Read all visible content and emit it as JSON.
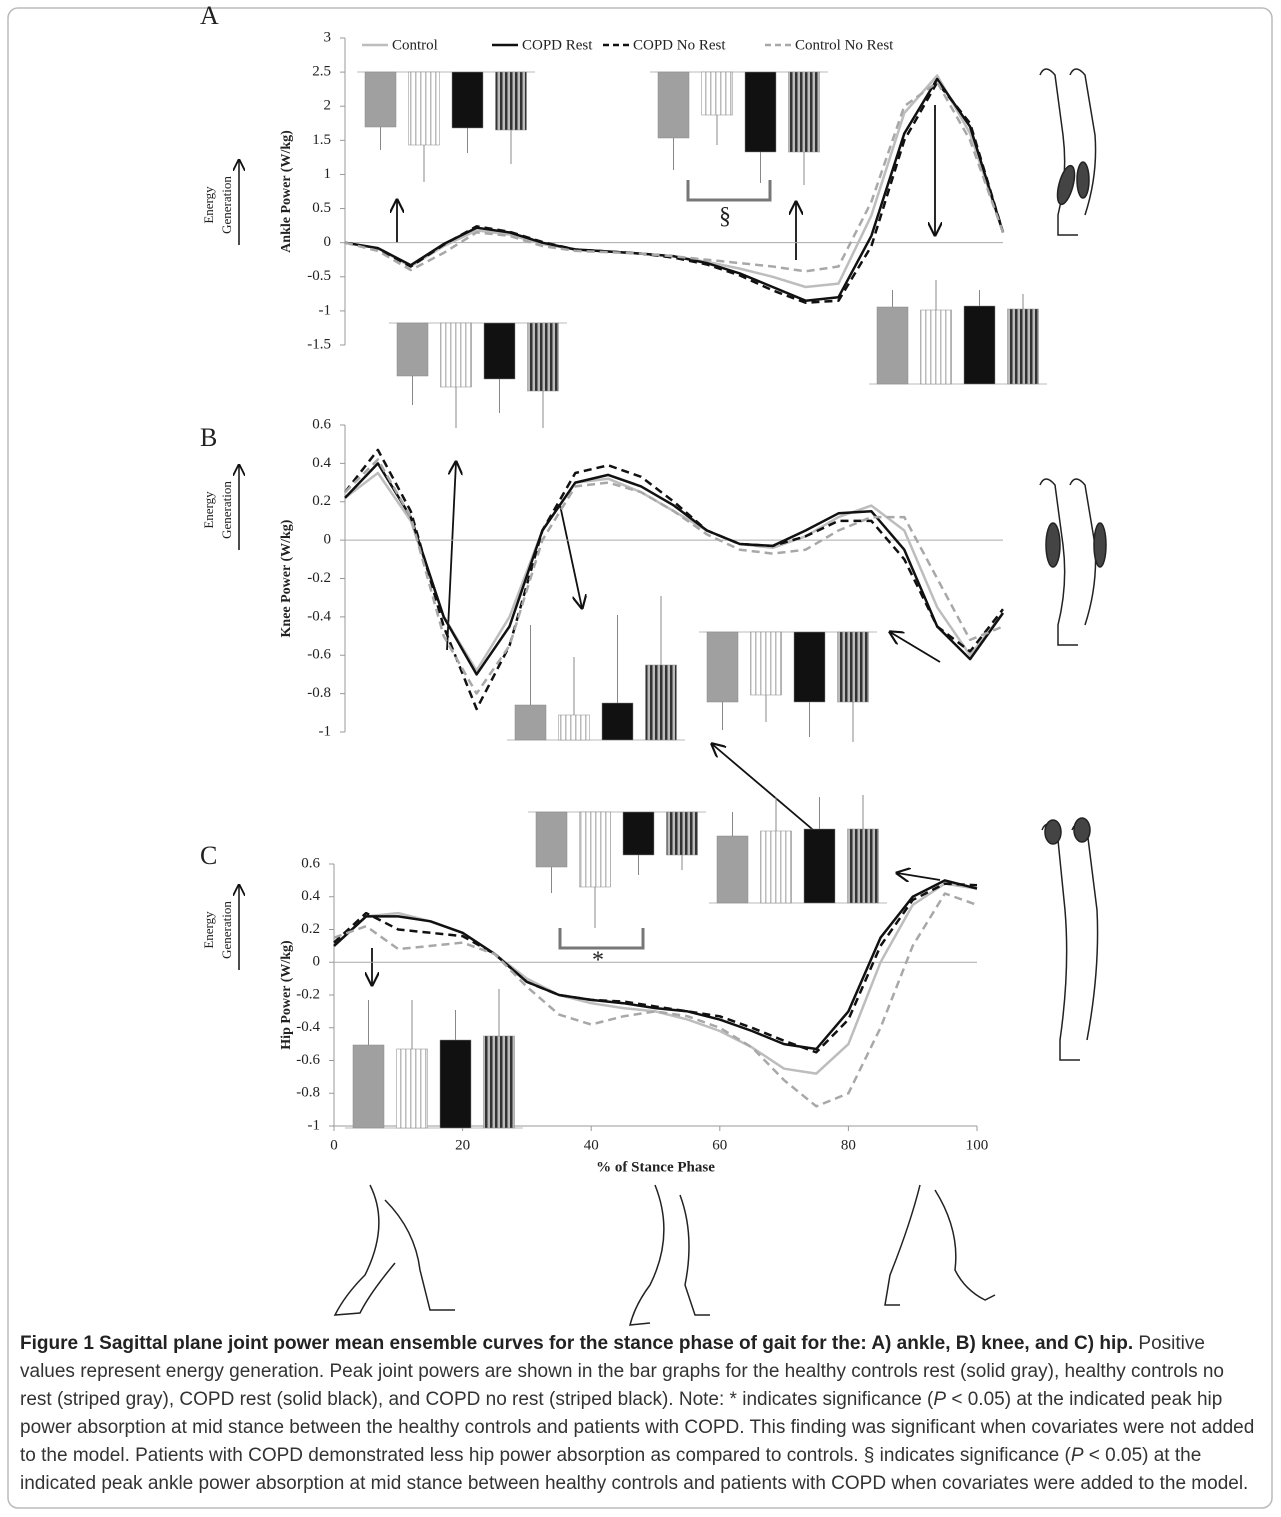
{
  "legend": [
    {
      "name": "Control",
      "color": "#bdbdbd",
      "dashed": false
    },
    {
      "name": "COPD Rest",
      "color": "#111111",
      "dashed": false
    },
    {
      "name": "COPD No Rest",
      "color": "#111111",
      "dashed": true
    },
    {
      "name": "Control No Rest",
      "color": "#a8a8a8",
      "dashed": true
    }
  ],
  "x": [
    0,
    5,
    10,
    15,
    20,
    25,
    30,
    35,
    40,
    45,
    50,
    55,
    60,
    65,
    70,
    75,
    80,
    85,
    90,
    95,
    100
  ],
  "xlim": [
    0,
    100
  ],
  "xticks": [
    0,
    20,
    40,
    60,
    80,
    100
  ],
  "xlabel": "% of Stance Phase",
  "energy_label": [
    "Energy",
    "Generation"
  ],
  "panels": [
    {
      "label": "A",
      "ylabel": "Ankle Power (W/kg)",
      "ylim": [
        -1.5,
        3
      ],
      "yticks": [
        3,
        2.5,
        2,
        1.5,
        1,
        0.5,
        0,
        -0.5,
        -1,
        -1.5
      ],
      "series": [
        {
          "values": [
            0,
            -0.08,
            -0.35,
            -0.05,
            0.18,
            0.12,
            -0.02,
            -0.1,
            -0.13,
            -0.16,
            -0.2,
            -0.28,
            -0.38,
            -0.5,
            -0.65,
            -0.6,
            0.4,
            1.9,
            2.45,
            1.6,
            0.15
          ]
        },
        {
          "values": [
            0,
            -0.08,
            -0.33,
            -0.02,
            0.22,
            0.15,
            0,
            -0.1,
            -0.13,
            -0.16,
            -0.2,
            -0.3,
            -0.45,
            -0.65,
            -0.85,
            -0.8,
            0.1,
            1.6,
            2.4,
            1.7,
            0.15
          ]
        },
        {
          "values": [
            0,
            -0.09,
            -0.35,
            -0.03,
            0.24,
            0.16,
            0.01,
            -0.1,
            -0.13,
            -0.16,
            -0.22,
            -0.32,
            -0.48,
            -0.7,
            -0.88,
            -0.85,
            -0.05,
            1.5,
            2.35,
            1.75,
            0.15
          ]
        },
        {
          "values": [
            0,
            -0.12,
            -0.4,
            -0.15,
            0.15,
            0.1,
            -0.05,
            -0.12,
            -0.14,
            -0.16,
            -0.2,
            -0.25,
            -0.3,
            -0.35,
            -0.42,
            -0.35,
            0.6,
            2.0,
            2.35,
            1.5,
            0.15
          ]
        }
      ],
      "insets": [
        {
          "values": [
            55,
            73,
            56,
            58
          ],
          "errors": [
            23,
            37,
            25,
            34
          ]
        },
        {
          "values": [
            66,
            43,
            80,
            80
          ],
          "errors": [
            32,
            30,
            31,
            33
          ]
        },
        {
          "values": [
            53,
            64,
            56,
            68
          ],
          "errors": [
            29,
            41,
            34,
            37
          ]
        },
        {
          "values": [
            77,
            74,
            78,
            75
          ],
          "errors": [
            17,
            30,
            16,
            15
          ]
        }
      ],
      "annotation": "§"
    },
    {
      "label": "B",
      "ylabel": "Knee Power (W/kg)",
      "ylim": [
        -1,
        0.6
      ],
      "yticks": [
        0.6,
        0.4,
        0.2,
        0,
        -0.2,
        -0.4,
        -0.6,
        -0.8,
        -1
      ],
      "series": [
        {
          "values": [
            0.22,
            0.35,
            0.1,
            -0.4,
            -0.68,
            -0.4,
            0.05,
            0.3,
            0.32,
            0.25,
            0.15,
            0.05,
            -0.02,
            -0.04,
            0.02,
            0.12,
            0.18,
            0.05,
            -0.35,
            -0.6,
            -0.38
          ]
        },
        {
          "values": [
            0.22,
            0.4,
            0.12,
            -0.4,
            -0.7,
            -0.45,
            0.05,
            0.3,
            0.34,
            0.28,
            0.18,
            0.05,
            -0.02,
            -0.03,
            0.05,
            0.14,
            0.15,
            -0.05,
            -0.45,
            -0.62,
            -0.38
          ]
        },
        {
          "values": [
            0.25,
            0.47,
            0.15,
            -0.45,
            -0.88,
            -0.55,
            0.05,
            0.35,
            0.39,
            0.33,
            0.2,
            0.05,
            -0.02,
            -0.03,
            0.02,
            0.1,
            0.1,
            -0.1,
            -0.45,
            -0.58,
            -0.36
          ]
        },
        {
          "values": [
            0.25,
            0.42,
            0.12,
            -0.5,
            -0.8,
            -0.55,
            0,
            0.28,
            0.3,
            0.25,
            0.15,
            0.03,
            -0.05,
            -0.07,
            -0.05,
            0.05,
            0.12,
            0.12,
            -0.2,
            -0.52,
            -0.45
          ]
        }
      ],
      "insets": [
        {
          "values": [
            35,
            25,
            37,
            75
          ],
          "errors": [
            80,
            58,
            88,
            69
          ]
        },
        {
          "values": [
            70,
            63,
            70,
            70
          ],
          "errors": [
            28,
            27,
            35,
            40
          ]
        }
      ]
    },
    {
      "label": "C",
      "ylabel": "Hip Power (W/kg)",
      "ylim": [
        -1,
        0.6
      ],
      "yticks": [
        0.6,
        0.4,
        0.2,
        0,
        -0.2,
        -0.4,
        -0.6,
        -0.8,
        -1
      ],
      "series": [
        {
          "values": [
            0.1,
            0.28,
            0.3,
            0.25,
            0.18,
            0.05,
            -0.1,
            -0.2,
            -0.25,
            -0.28,
            -0.3,
            -0.35,
            -0.42,
            -0.52,
            -0.65,
            -0.68,
            -0.5,
            0,
            0.35,
            0.48,
            0.45
          ]
        },
        {
          "values": [
            0.1,
            0.28,
            0.28,
            0.25,
            0.18,
            0.05,
            -0.12,
            -0.2,
            -0.23,
            -0.25,
            -0.28,
            -0.3,
            -0.35,
            -0.42,
            -0.5,
            -0.53,
            -0.3,
            0.15,
            0.4,
            0.5,
            0.45
          ]
        },
        {
          "values": [
            0.12,
            0.3,
            0.2,
            0.18,
            0.16,
            0.05,
            -0.12,
            -0.2,
            -0.23,
            -0.24,
            -0.27,
            -0.3,
            -0.33,
            -0.4,
            -0.48,
            -0.55,
            -0.35,
            0.1,
            0.38,
            0.48,
            0.47
          ]
        },
        {
          "values": [
            0.15,
            0.22,
            0.08,
            0.1,
            0.12,
            0.05,
            -0.15,
            -0.32,
            -0.38,
            -0.33,
            -0.3,
            -0.33,
            -0.4,
            -0.52,
            -0.72,
            -0.88,
            -0.8,
            -0.4,
            0.1,
            0.42,
            0.35
          ]
        }
      ],
      "insets": [
        {
          "values": [
            55,
            75,
            43,
            43
          ],
          "errors": [
            26,
            41,
            20,
            15
          ]
        },
        {
          "values": [
            67,
            72,
            74,
            74
          ],
          "errors": [
            24,
            34,
            32,
            34
          ]
        },
        {
          "values": [
            83,
            79,
            88,
            92
          ],
          "errors": [
            45,
            49,
            30,
            47
          ]
        }
      ],
      "annotation": "*"
    }
  ],
  "caption": {
    "title": "Figure 1 Sagittal plane joint power mean ensemble curves for the stance phase of gait for the: A) ankle, B) knee, and C) hip.",
    "parts": [
      " Positive values represent energy generation. Peak joint powers are shown in the bar graphs for the healthy controls rest (solid gray), healthy controls no rest (striped gray), COPD rest (solid black), and COPD no rest (striped black). Note: * indicates significance (",
      "P",
      " < 0.05) at the indicated peak hip power absorption at mid stance between the healthy controls and patients with COPD. This finding was significant when covariates were not added to the model. Patients with COPD demonstrated less hip power absorption as compared to controls. § indicates significance (",
      "P",
      " < 0.05) at the indicated peak ankle power absorption at mid stance between healthy controls and patients with COPD when covariates were added to the model."
    ]
  }
}
